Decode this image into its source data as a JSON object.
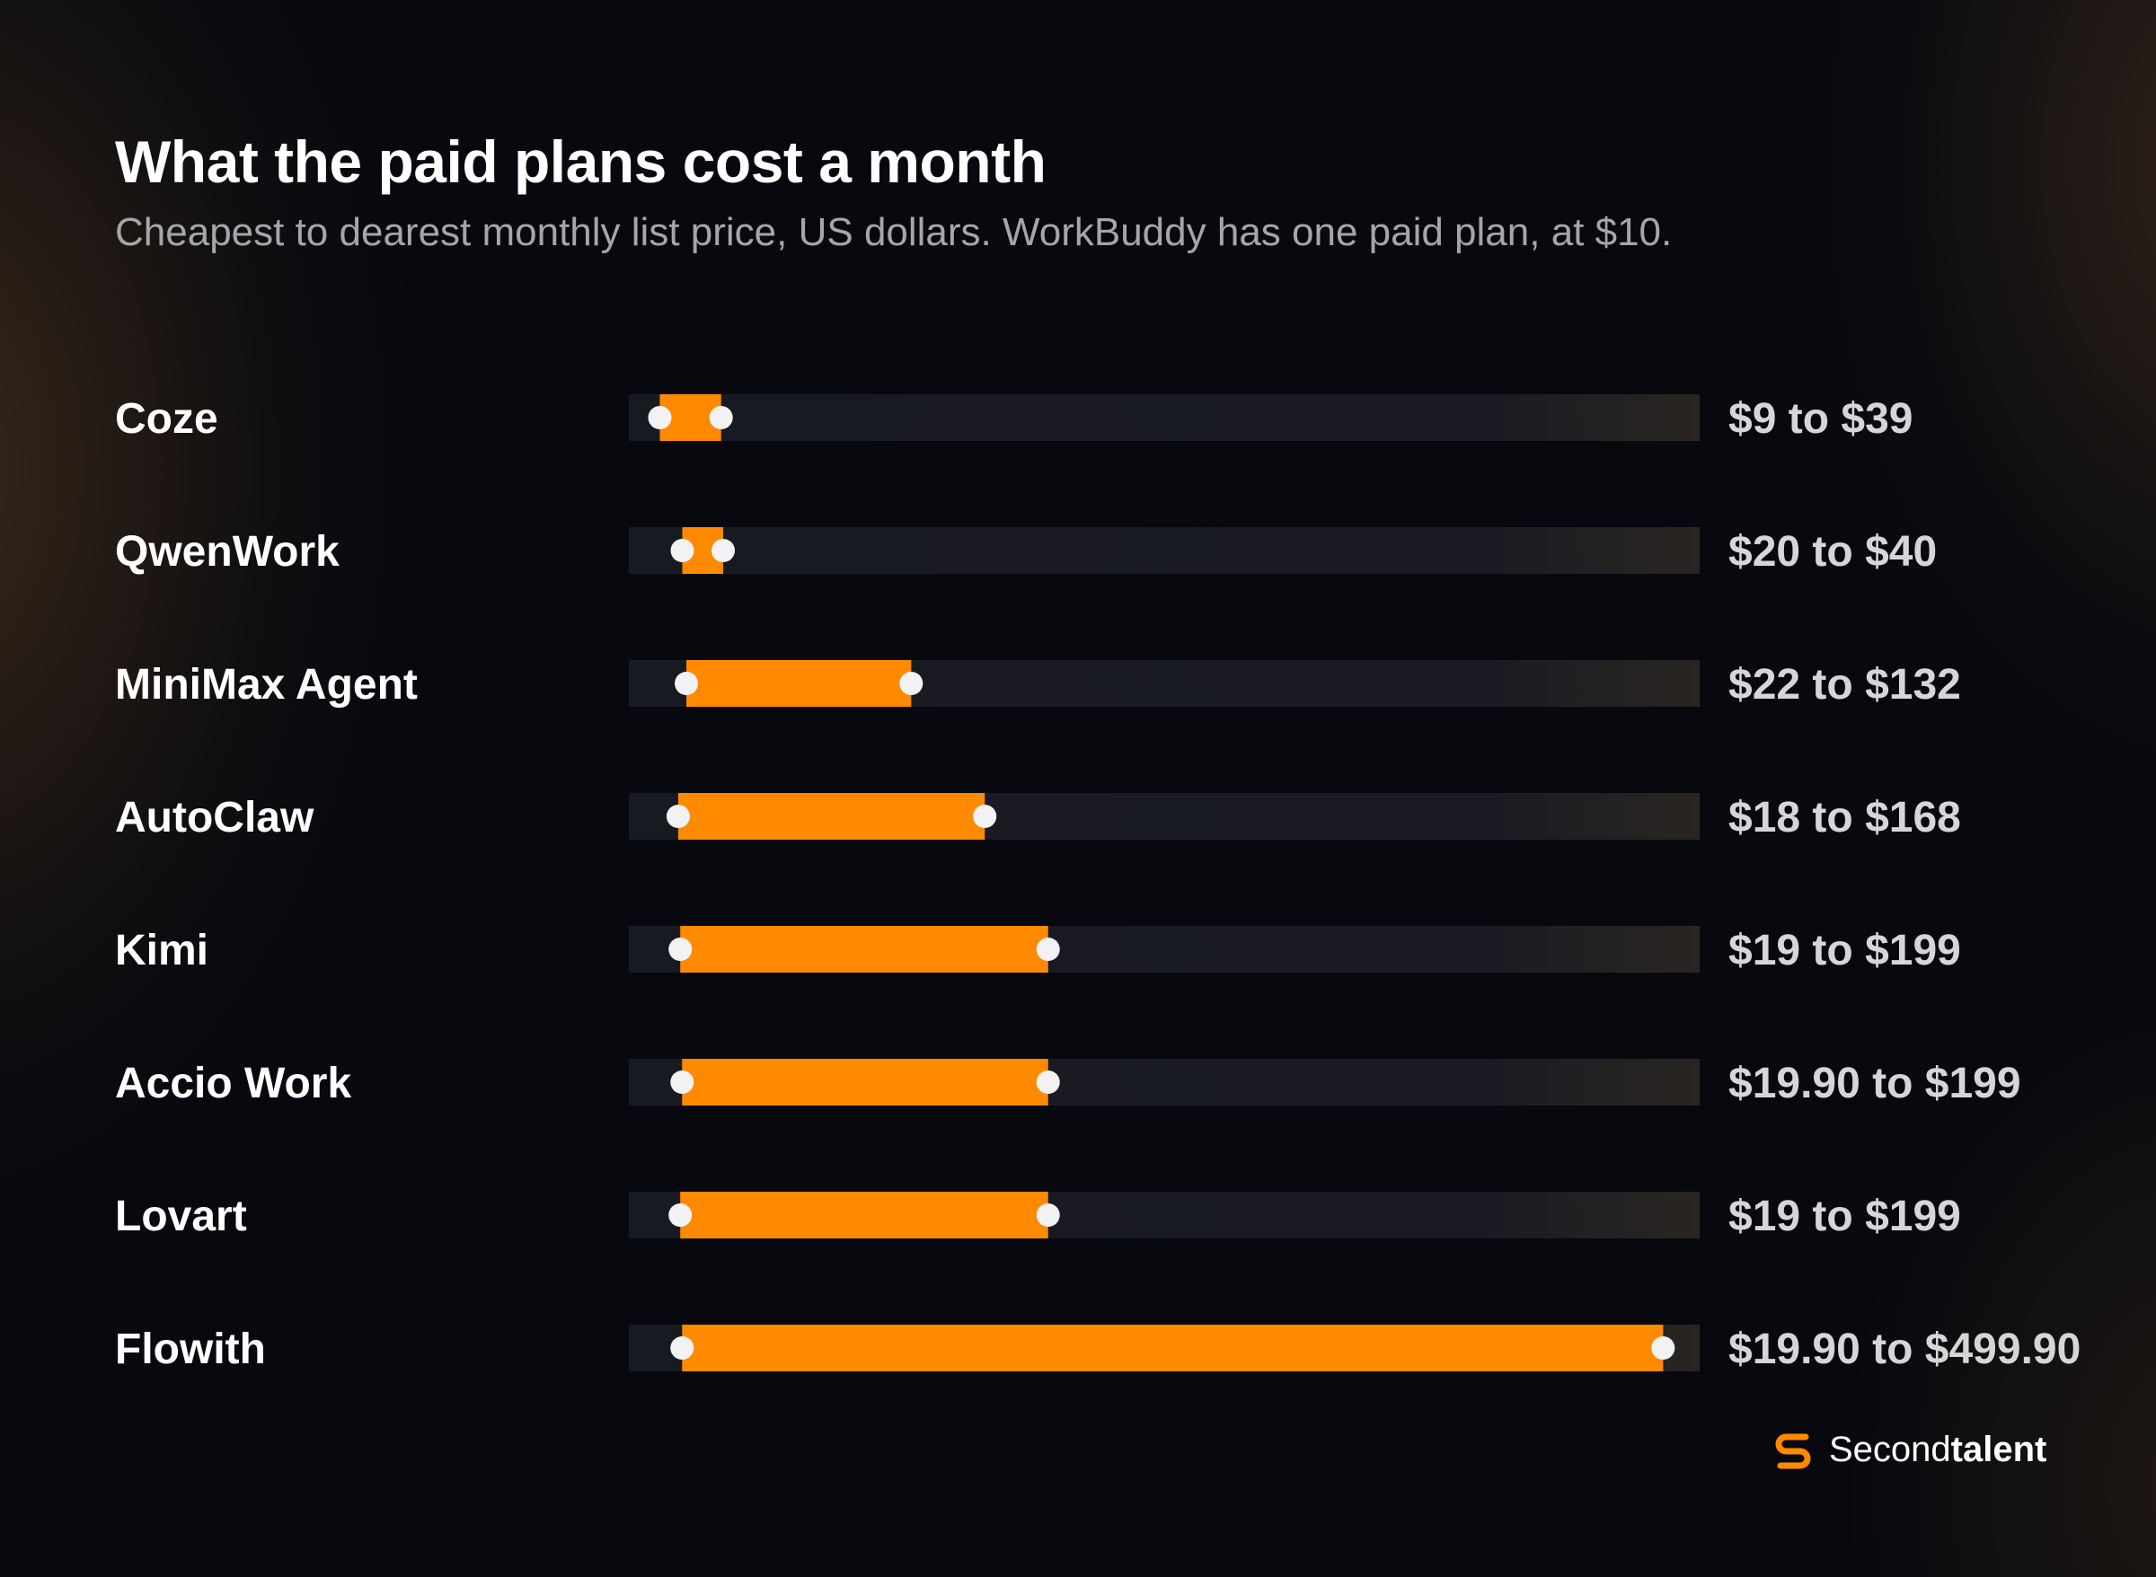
{
  "header": {
    "title": "What the paid plans cost a month",
    "subtitle": "Cheapest to dearest monthly list price, US dollars. WorkBuddy has one paid plan, at $10."
  },
  "brand": {
    "name_light": "Second",
    "name_bold": "talent",
    "accent": "#ff8a00"
  },
  "colors": {
    "bar": "#ff8a00",
    "track": "#181a22",
    "dot": "#f2f2f4"
  },
  "chart_data": {
    "type": "bar",
    "subtype": "range",
    "xlim": [
      0,
      520
    ],
    "grid": false,
    "legend": "none",
    "series": [
      {
        "label": "Coze",
        "min": 9,
        "max": 39,
        "text": "$9 to $39"
      },
      {
        "label": "QwenWork",
        "min": 20,
        "max": 40,
        "text": "$20 to $40"
      },
      {
        "label": "MiniMax Agent",
        "min": 22,
        "max": 132,
        "text": "$22 to $132"
      },
      {
        "label": "AutoClaw",
        "min": 18,
        "max": 168,
        "text": "$18 to $168"
      },
      {
        "label": "Kimi",
        "min": 19,
        "max": 199,
        "text": "$19 to $199"
      },
      {
        "label": "Accio Work",
        "min": 19.9,
        "max": 199,
        "text": "$19.90 to $199"
      },
      {
        "label": "Lovart",
        "min": 19,
        "max": 199,
        "text": "$19 to $199"
      },
      {
        "label": "Flowith",
        "min": 19.9,
        "max": 499.9,
        "text": "$19.90 to $499.90"
      }
    ]
  }
}
